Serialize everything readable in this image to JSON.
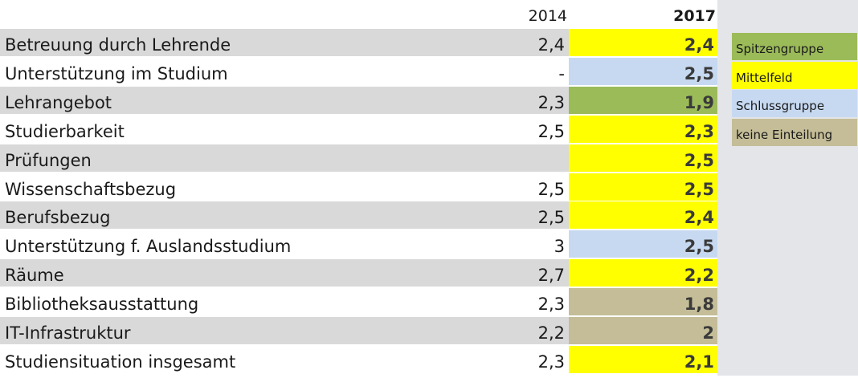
{
  "chart_data": {
    "type": "table",
    "columns": [
      "2014",
      "2017"
    ],
    "rows": [
      {
        "label": "Betreuung durch Lehrende",
        "v2014": "2,4",
        "v2017": "2,4",
        "group": "Mittelfeld"
      },
      {
        "label": "Unterstützung im Studium",
        "v2014": "-",
        "v2017": "2,5",
        "group": "Schlussgruppe"
      },
      {
        "label": "Lehrangebot",
        "v2014": "2,3",
        "v2017": "1,9",
        "group": "Spitzengruppe"
      },
      {
        "label": "Studierbarkeit",
        "v2014": "2,5",
        "v2017": "2,3",
        "group": "Mittelfeld"
      },
      {
        "label": "Prüfungen",
        "v2014": "",
        "v2017": "2,5",
        "group": "Mittelfeld"
      },
      {
        "label": "Wissenschaftsbezug",
        "v2014": "2,5",
        "v2017": "2,5",
        "group": "Mittelfeld"
      },
      {
        "label": "Berufsbezug",
        "v2014": "2,5",
        "v2017": "2,4",
        "group": "Mittelfeld"
      },
      {
        "label": "Unterstützung f. Auslandsstudium",
        "v2014": "3",
        "v2017": "2,5",
        "group": "Schlussgruppe"
      },
      {
        "label": "Räume",
        "v2014": "2,7",
        "v2017": "2,2",
        "group": "Mittelfeld"
      },
      {
        "label": "Bibliotheksausstattung",
        "v2014": "2,3",
        "v2017": "1,8",
        "group": "keine Einteilung"
      },
      {
        "label": "IT-Infrastruktur",
        "v2014": "2,2",
        "v2017": "2",
        "group": "keine Einteilung"
      },
      {
        "label": "Studiensituation insgesamt",
        "v2014": "2,3",
        "v2017": "2,1",
        "group": "Mittelfeld"
      }
    ],
    "legend": [
      {
        "label": "Spitzengruppe",
        "color": "#9bbb59"
      },
      {
        "label": "Mittelfeld",
        "color": "#ffff00"
      },
      {
        "label": "Schlussgruppe",
        "color": "#c6d9f1"
      },
      {
        "label": "keine Einteilung",
        "color": "#c4bd97"
      }
    ],
    "row_shading": [
      "#d9d9d9",
      "#ffffff"
    ]
  }
}
